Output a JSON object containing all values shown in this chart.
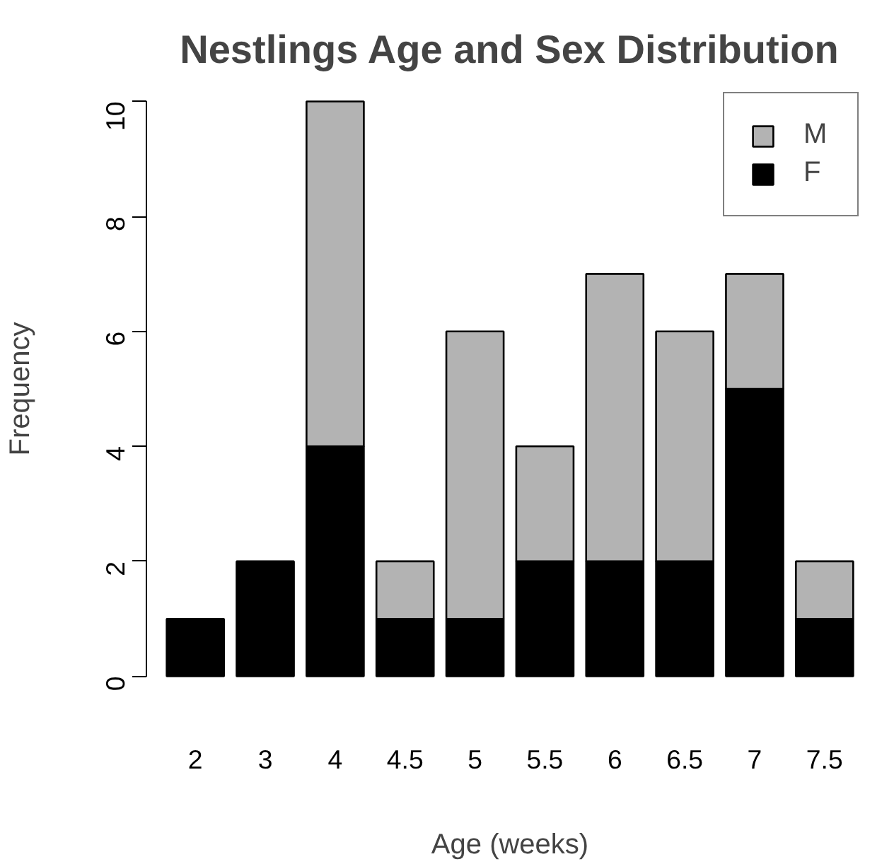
{
  "chart_data": {
    "type": "bar",
    "title": "Nestlings Age and Sex Distribution",
    "xlabel": "Age (weeks)",
    "ylabel": "Frequency",
    "categories": [
      "2",
      "3",
      "4",
      "4.5",
      "5",
      "5.5",
      "6",
      "6.5",
      "7",
      "7.5"
    ],
    "stacked": true,
    "series": [
      {
        "name": "F",
        "color": "#000000",
        "values": [
          1,
          2,
          4,
          1,
          1,
          2,
          2,
          2,
          5,
          1
        ]
      },
      {
        "name": "M",
        "color": "#b3b3b3",
        "values": [
          0,
          0,
          6,
          1,
          5,
          2,
          5,
          4,
          2,
          1
        ]
      }
    ],
    "ylim": [
      0,
      10
    ],
    "yticks": [
      0,
      2,
      4,
      6,
      8,
      10
    ],
    "grid": false,
    "legend": "top right"
  }
}
